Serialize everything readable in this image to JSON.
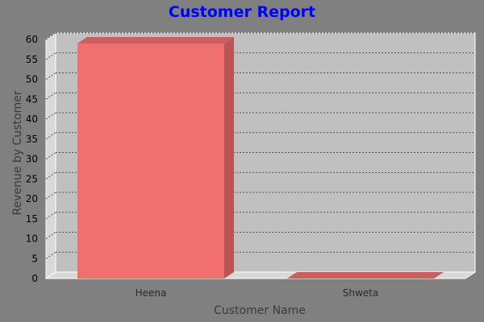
{
  "chart_data": {
    "type": "bar",
    "title": "Customer Report",
    "xlabel": "Customer Name",
    "ylabel": "Revenue by Customer",
    "categories": [
      "Heena",
      "Shweta"
    ],
    "values": [
      59,
      0
    ],
    "ylim": [
      0,
      60
    ],
    "yticks": [
      "0",
      "5",
      "10",
      "15",
      "20",
      "25",
      "30",
      "35",
      "40",
      "45",
      "50",
      "55",
      "60"
    ],
    "grid": true,
    "legend": "none",
    "colors": {
      "bar": "#f07070",
      "bar_side": "#b85555",
      "bar_top": "#c86060",
      "plot": "#c0c0c0",
      "wall": "#d8d8d8",
      "background": "#808080",
      "title": "#0000ff"
    }
  }
}
